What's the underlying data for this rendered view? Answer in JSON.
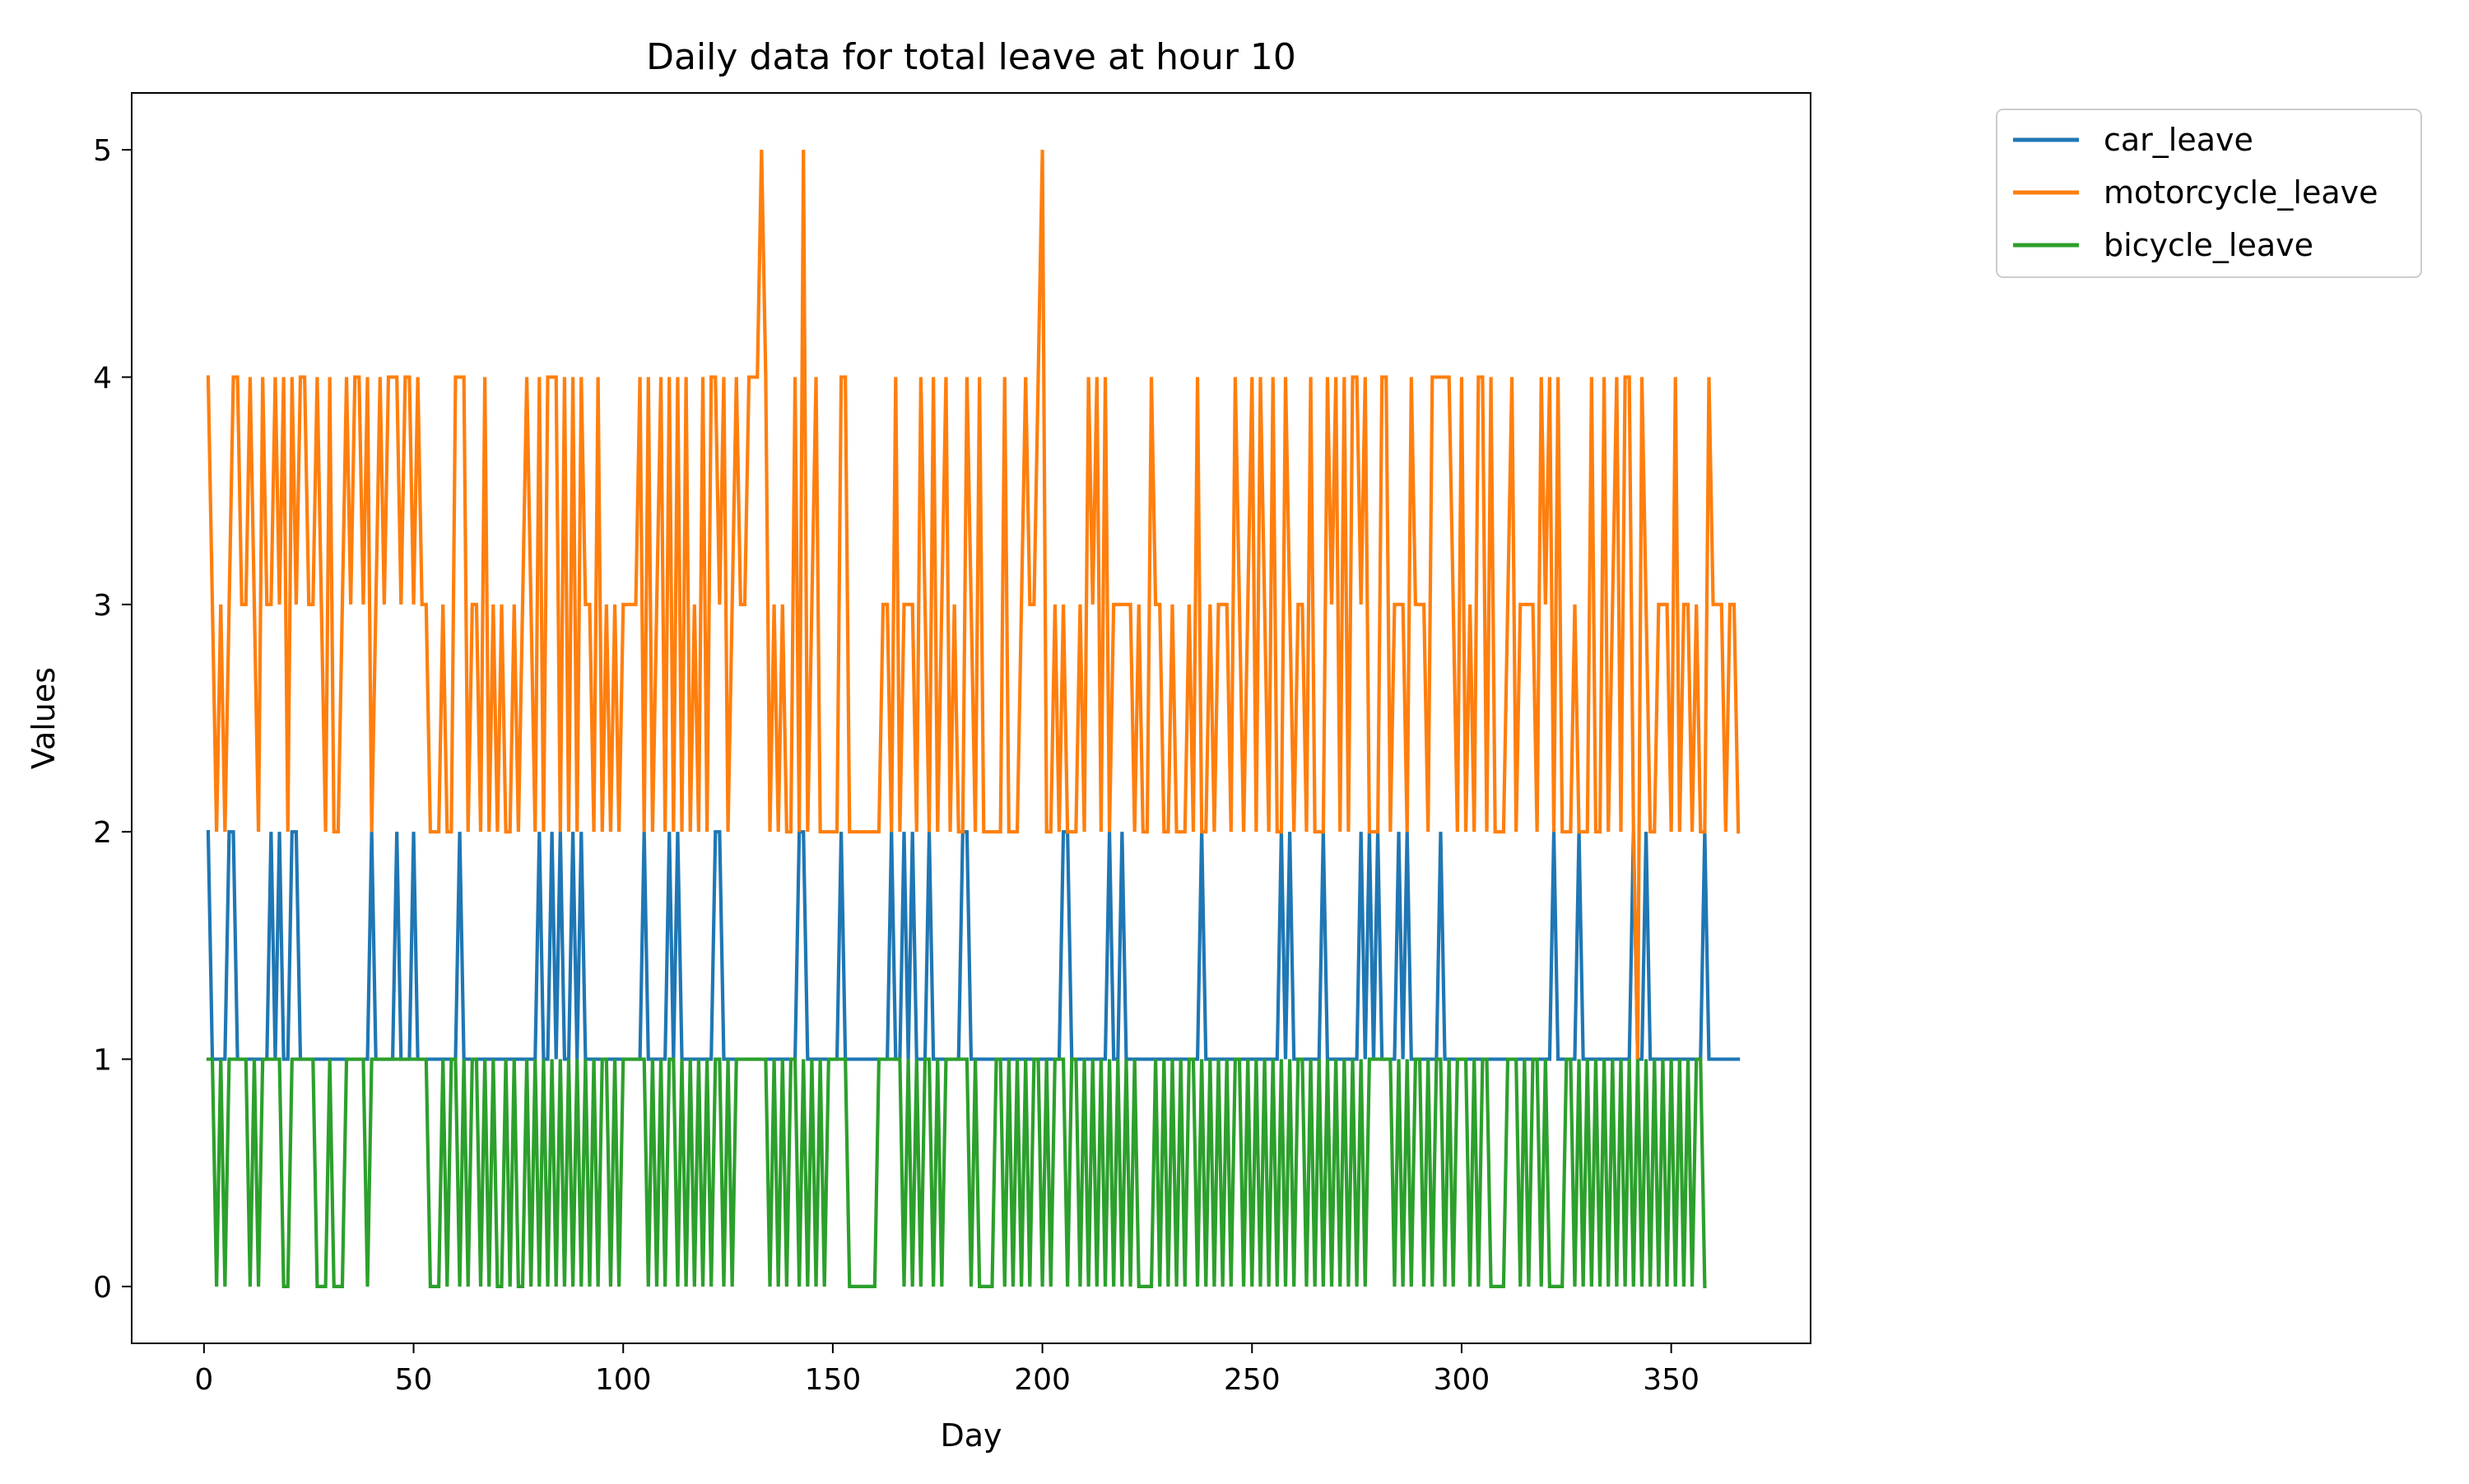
{
  "chart_data": {
    "type": "line",
    "title": "Daily data for total leave at hour 10",
    "xlabel": "Day",
    "ylabel": "Values",
    "xlim": [
      -17.25,
      383.25
    ],
    "ylim": [
      -0.25,
      5.25
    ],
    "xticks": [
      0,
      50,
      100,
      150,
      200,
      250,
      300,
      350
    ],
    "yticks": [
      0,
      1,
      2,
      3,
      4,
      5
    ],
    "grid": false,
    "legend_position": "outside top-right",
    "x": {
      "start": 1,
      "end": 365
    },
    "series": [
      {
        "name": "car_leave",
        "color": "#1f77b4",
        "values": [
          2,
          1,
          1,
          1,
          1,
          2,
          2,
          1,
          1,
          1,
          1,
          1,
          1,
          1,
          1,
          2,
          1,
          2,
          1,
          1,
          2,
          2,
          1,
          1,
          1,
          1,
          1,
          1,
          1,
          1,
          1,
          1,
          1,
          1,
          1,
          1,
          1,
          1,
          1,
          2,
          1,
          1,
          1,
          1,
          1,
          2,
          1,
          1,
          1,
          2,
          1,
          1,
          1,
          1,
          1,
          1,
          1,
          1,
          1,
          1,
          2,
          1,
          1,
          1,
          1,
          1,
          1,
          1,
          1,
          1,
          1,
          1,
          1,
          1,
          1,
          1,
          1,
          1,
          1,
          2,
          1,
          1,
          2,
          1,
          2,
          1,
          1,
          2,
          1,
          2,
          1,
          1,
          1,
          1,
          1,
          1,
          1,
          1,
          1,
          1,
          1,
          1,
          1,
          1,
          2,
          1,
          1,
          1,
          1,
          1,
          2,
          1,
          2,
          1,
          1,
          1,
          1,
          1,
          1,
          1,
          1,
          2,
          2,
          1,
          1,
          1,
          1,
          1,
          1,
          1,
          1,
          1,
          1,
          1,
          1,
          1,
          1,
          1,
          1,
          1,
          1,
          2,
          2,
          1,
          1,
          1,
          1,
          1,
          1,
          1,
          1,
          2,
          1,
          1,
          1,
          1,
          1,
          1,
          1,
          1,
          1,
          1,
          1,
          2,
          1,
          1,
          2,
          1,
          2,
          1,
          1,
          1,
          2,
          1,
          1,
          1,
          1,
          1,
          1,
          1,
          2,
          2,
          1,
          1,
          1,
          1,
          1,
          1,
          1,
          1,
          1,
          1,
          1,
          1,
          1,
          1,
          1,
          1,
          1,
          1,
          1,
          1,
          1,
          1,
          2,
          2,
          1,
          1,
          1,
          1,
          1,
          1,
          1,
          1,
          1,
          2,
          1,
          1,
          2,
          1,
          1,
          1,
          1,
          1,
          1,
          1,
          1,
          1,
          1,
          1,
          1,
          1,
          1,
          1,
          1,
          1,
          1,
          2,
          1,
          1,
          1,
          1,
          1,
          1,
          1,
          1,
          1,
          1,
          1,
          1,
          1,
          1,
          1,
          1,
          1,
          1,
          2,
          1,
          2,
          1,
          1,
          1,
          1,
          1,
          1,
          1,
          2,
          1,
          1,
          1,
          1,
          1,
          1,
          1,
          1,
          2,
          1,
          2,
          1,
          2,
          1,
          1,
          1,
          1,
          2,
          1,
          2,
          1,
          1,
          1,
          1,
          1,
          1,
          1,
          2,
          1,
          1,
          1,
          1,
          1,
          1,
          1,
          1,
          1,
          1,
          1,
          1,
          1,
          1,
          1,
          1,
          1,
          1,
          1,
          1,
          1,
          1,
          1,
          1,
          1,
          1,
          2,
          1,
          1,
          1,
          1,
          1,
          2,
          1,
          1,
          1,
          1,
          1,
          1,
          1,
          1,
          1,
          1,
          1,
          1,
          2,
          1,
          1,
          2,
          1,
          1,
          1,
          1,
          1,
          1,
          1,
          1,
          1,
          1,
          1,
          1,
          1,
          2,
          1,
          1,
          1,
          1,
          1,
          1,
          1,
          1
        ]
      },
      {
        "name": "motorcycle_leave",
        "color": "#ff7f0e",
        "values": [
          4,
          3,
          2,
          3,
          2,
          3,
          4,
          4,
          3,
          3,
          4,
          3,
          2,
          4,
          3,
          3,
          4,
          3,
          4,
          2,
          4,
          3,
          4,
          4,
          3,
          3,
          4,
          3,
          2,
          4,
          2,
          2,
          3,
          4,
          3,
          4,
          4,
          3,
          4,
          2,
          3,
          4,
          3,
          4,
          4,
          4,
          3,
          4,
          4,
          3,
          4,
          3,
          3,
          2,
          2,
          2,
          3,
          2,
          2,
          4,
          4,
          4,
          2,
          3,
          3,
          2,
          4,
          2,
          3,
          2,
          3,
          2,
          2,
          3,
          2,
          3,
          4,
          3,
          2,
          4,
          2,
          4,
          4,
          4,
          2,
          4,
          2,
          4,
          2,
          4,
          3,
          3,
          2,
          4,
          2,
          3,
          2,
          3,
          2,
          3,
          3,
          3,
          3,
          4,
          2,
          4,
          2,
          3,
          4,
          2,
          4,
          2,
          4,
          2,
          4,
          2,
          3,
          2,
          4,
          2,
          4,
          4,
          3,
          4,
          2,
          3,
          4,
          3,
          3,
          4,
          4,
          4,
          5,
          4,
          2,
          3,
          2,
          3,
          2,
          2,
          4,
          2,
          5,
          2,
          3,
          4,
          2,
          2,
          2,
          2,
          2,
          4,
          4,
          2,
          2,
          2,
          2,
          2,
          2,
          2,
          2,
          3,
          3,
          2,
          4,
          2,
          3,
          3,
          3,
          2,
          4,
          3,
          2,
          4,
          2,
          3,
          4,
          2,
          3,
          2,
          2,
          4,
          3,
          2,
          4,
          2,
          2,
          2,
          2,
          2,
          4,
          2,
          2,
          2,
          3,
          4,
          3,
          3,
          4,
          5,
          2,
          2,
          3,
          2,
          3,
          2,
          2,
          2,
          3,
          2,
          4,
          3,
          4,
          2,
          4,
          2,
          3,
          3,
          3,
          3,
          3,
          2,
          3,
          2,
          2,
          4,
          3,
          3,
          2,
          2,
          3,
          2,
          2,
          2,
          3,
          2,
          4,
          2,
          2,
          3,
          2,
          3,
          3,
          3,
          2,
          4,
          3,
          2,
          3,
          4,
          2,
          4,
          3,
          2,
          4,
          2,
          2,
          4,
          3,
          2,
          3,
          3,
          2,
          4,
          2,
          2,
          2,
          4,
          3,
          4,
          2,
          4,
          2,
          4,
          4,
          3,
          4,
          2,
          2,
          2,
          4,
          4,
          2,
          3,
          3,
          3,
          2,
          4,
          3,
          3,
          3,
          2,
          4,
          4,
          4,
          4,
          4,
          3,
          2,
          4,
          2,
          3,
          2,
          4,
          4,
          2,
          4,
          2,
          2,
          2,
          3,
          4,
          2,
          3,
          3,
          3,
          3,
          2,
          4,
          3,
          4,
          2,
          4,
          2,
          2,
          2,
          3,
          2,
          2,
          2,
          4,
          2,
          2,
          4,
          2,
          3,
          4,
          2,
          4,
          4,
          2,
          1,
          4,
          3,
          2,
          2,
          3,
          3,
          3,
          2,
          4,
          2,
          3,
          3,
          2,
          3,
          2,
          2,
          4,
          3,
          3,
          3,
          2,
          3,
          3,
          2
        ]
      },
      {
        "name": "bicycle_leave",
        "color": "#2ca02c",
        "values": [
          1,
          1,
          0,
          1,
          0,
          1,
          1,
          1,
          1,
          1,
          0,
          1,
          0,
          1,
          1,
          1,
          1,
          1,
          0,
          0,
          1,
          1,
          1,
          1,
          1,
          1,
          0,
          0,
          0,
          1,
          0,
          0,
          0,
          1,
          1,
          1,
          1,
          1,
          0,
          1,
          1,
          1,
          1,
          1,
          1,
          1,
          1,
          1,
          1,
          1,
          1,
          1,
          1,
          0,
          0,
          0,
          1,
          0,
          1,
          1,
          0,
          1,
          0,
          1,
          1,
          0,
          1,
          0,
          1,
          0,
          0,
          1,
          0,
          1,
          0,
          0,
          1,
          0,
          1,
          0,
          1,
          0,
          1,
          0,
          1,
          0,
          1,
          0,
          1,
          0,
          1,
          0,
          1,
          0,
          1,
          1,
          0,
          1,
          0,
          1,
          1,
          1,
          1,
          1,
          1,
          0,
          1,
          0,
          1,
          0,
          1,
          1,
          0,
          1,
          0,
          1,
          0,
          1,
          0,
          1,
          0,
          1,
          1,
          0,
          1,
          0,
          1,
          1,
          1,
          1,
          1,
          1,
          1,
          1,
          0,
          1,
          0,
          1,
          0,
          1,
          1,
          0,
          1,
          0,
          1,
          0,
          1,
          0,
          1,
          1,
          1,
          1,
          1,
          0,
          0,
          0,
          0,
          0,
          0,
          0,
          1,
          1,
          1,
          1,
          1,
          1,
          0,
          1,
          0,
          1,
          0,
          1,
          1,
          0,
          1,
          0,
          1,
          1,
          1,
          1,
          1,
          1,
          0,
          1,
          0,
          0,
          0,
          0,
          1,
          1,
          0,
          1,
          0,
          1,
          0,
          1,
          0,
          1,
          1,
          0,
          1,
          0,
          1,
          1,
          1,
          0,
          1,
          1,
          0,
          1,
          0,
          1,
          0,
          1,
          0,
          1,
          0,
          1,
          0,
          1,
          0,
          1,
          0,
          0,
          0,
          0,
          1,
          0,
          1,
          0,
          1,
          0,
          1,
          0,
          1,
          1,
          0,
          1,
          0,
          1,
          0,
          1,
          0,
          1,
          0,
          1,
          1,
          0,
          1,
          0,
          1,
          0,
          1,
          0,
          1,
          0,
          1,
          0,
          1,
          0,
          1,
          1,
          0,
          1,
          0,
          1,
          0,
          1,
          0,
          1,
          0,
          1,
          0,
          1,
          0,
          1,
          0,
          1,
          1,
          1,
          1,
          1,
          1,
          0,
          1,
          0,
          1,
          0,
          1,
          1,
          0,
          1,
          0,
          1,
          1,
          0,
          1,
          0,
          1,
          1,
          1,
          0,
          1,
          0,
          1,
          1,
          0,
          0,
          0,
          0,
          1,
          1,
          1,
          0,
          1,
          0,
          1,
          1,
          0,
          1,
          0,
          0,
          0,
          0,
          1,
          1,
          0,
          1,
          0,
          1,
          0,
          1,
          0,
          1,
          0,
          1,
          0,
          1,
          0,
          1,
          0,
          1,
          0,
          1,
          0,
          1,
          0,
          1,
          0,
          1,
          0,
          1,
          0,
          1,
          0,
          1,
          1,
          0
        ]
      }
    ]
  }
}
